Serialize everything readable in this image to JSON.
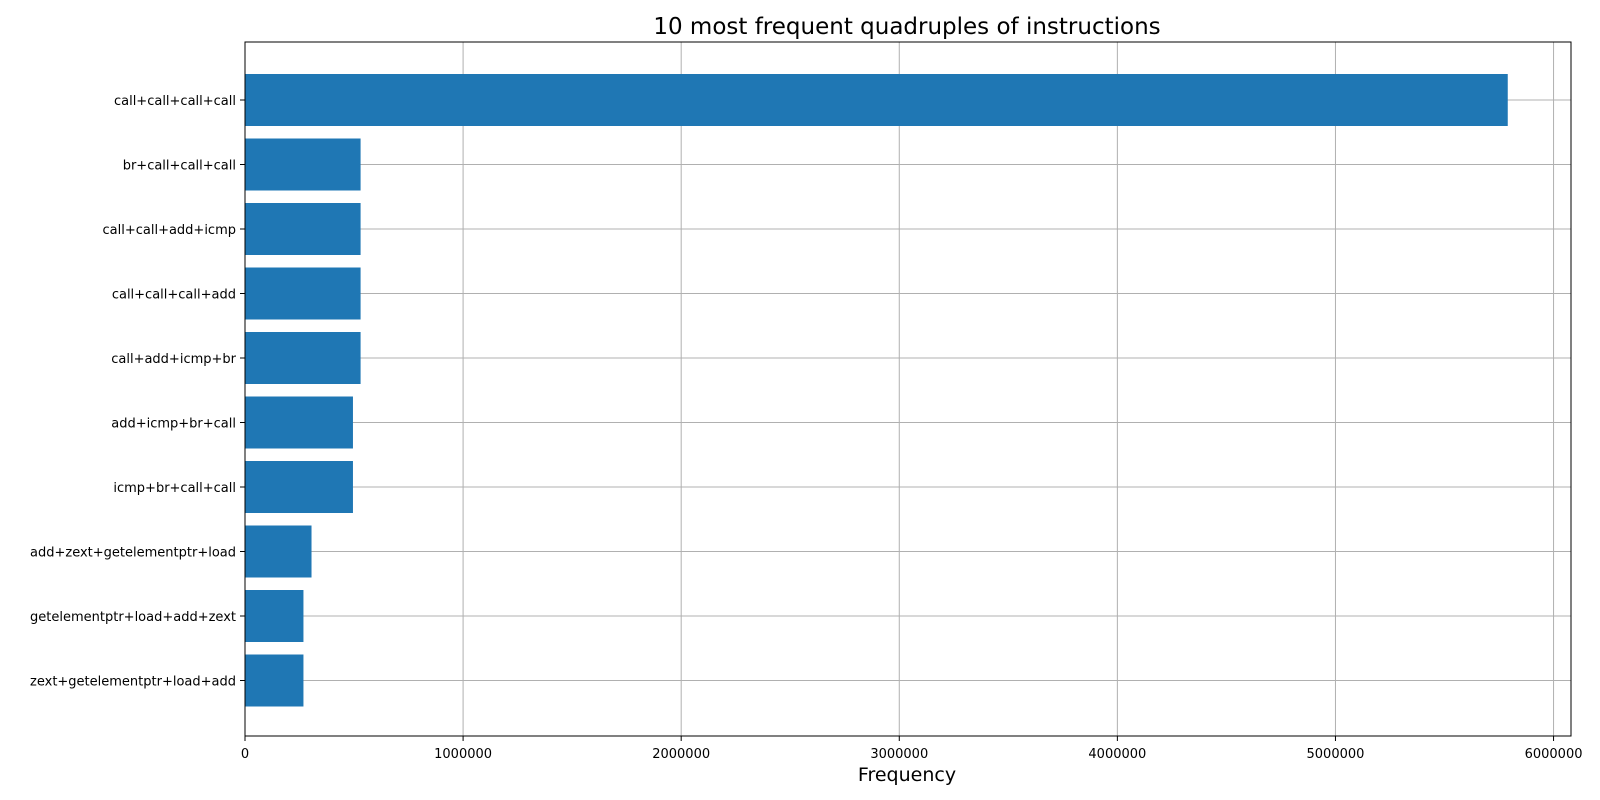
{
  "chart_data": {
    "type": "bar",
    "orientation": "horizontal",
    "title": "10 most frequent quadruples of instructions",
    "xlabel": "Frequency",
    "ylabel": "",
    "categories": [
      "call+call+call+call",
      "br+call+call+call",
      "call+call+add+icmp",
      "call+call+call+add",
      "call+add+icmp+br",
      "add+icmp+br+call",
      "icmp+br+call+call",
      "add+zext+getelementptr+load",
      "getelementptr+load+add+zext",
      "zext+getelementptr+load+add"
    ],
    "values": [
      5790000,
      530000,
      530000,
      530000,
      530000,
      495000,
      495000,
      305000,
      268000,
      268000
    ],
    "xlim": [
      0,
      6080000
    ],
    "xticks": [
      0,
      1000000,
      2000000,
      3000000,
      4000000,
      5000000,
      6000000
    ],
    "xtick_labels": [
      "0",
      "1000000",
      "2000000",
      "3000000",
      "4000000",
      "5000000",
      "6000000"
    ],
    "grid": true,
    "bar_color": "#1f77b4"
  }
}
